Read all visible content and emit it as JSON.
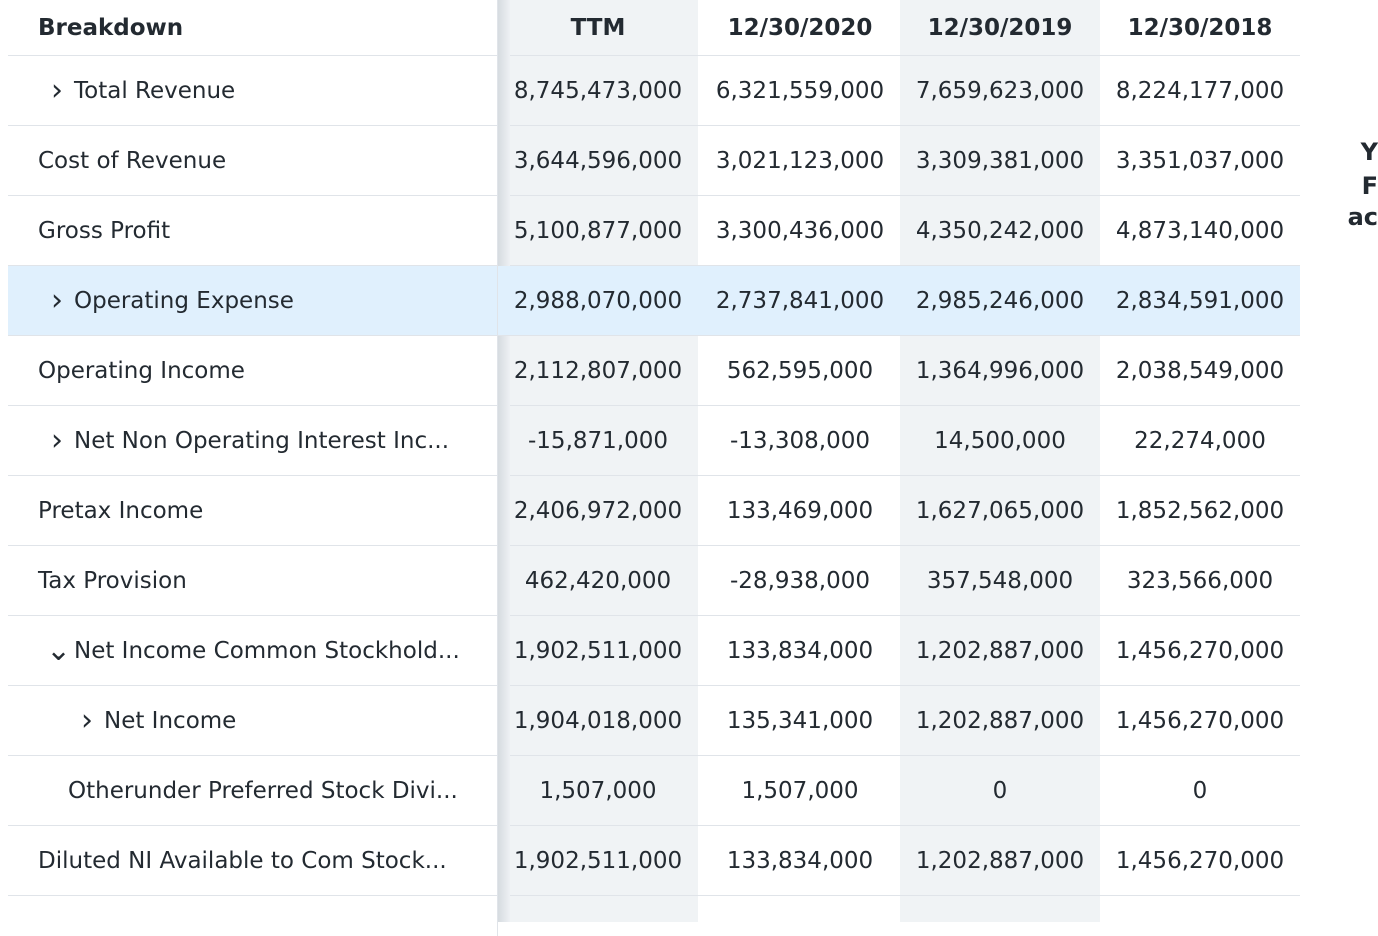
{
  "table": {
    "header": [
      "Breakdown",
      "TTM",
      "12/30/2020",
      "12/30/2019",
      "12/30/2018"
    ],
    "rows": [
      [
        "Total Revenue",
        "8,745,473,000",
        "6,321,559,000",
        "7,659,623,000",
        "8,224,177,000"
      ],
      [
        "Cost of Revenue",
        "3,644,596,000",
        "3,021,123,000",
        "3,309,381,000",
        "3,351,037,000"
      ],
      [
        "Gross Profit",
        "5,100,877,000",
        "3,300,436,000",
        "4,350,242,000",
        "4,873,140,000"
      ],
      [
        "Operating Expense",
        "2,988,070,000",
        "2,737,841,000",
        "2,985,246,000",
        "2,834,591,000"
      ],
      [
        "Operating Income",
        "2,112,807,000",
        "562,595,000",
        "1,364,996,000",
        "2,038,549,000"
      ],
      [
        "Net Non Operating Interest Inc...",
        "-15,871,000",
        "-13,308,000",
        "14,500,000",
        "22,274,000"
      ],
      [
        "Pretax Income",
        "2,406,972,000",
        "133,469,000",
        "1,627,065,000",
        "1,852,562,000"
      ],
      [
        "Tax Provision",
        "462,420,000",
        "-28,938,000",
        "357,548,000",
        "323,566,000"
      ],
      [
        "Net Income Common Stockhold...",
        "1,902,511,000",
        "133,834,000",
        "1,202,887,000",
        "1,456,270,000"
      ],
      [
        "Net Income",
        "1,904,018,000",
        "135,341,000",
        "1,202,887,000",
        "1,456,270,000"
      ],
      [
        "Otherunder Preferred Stock Divi...",
        "1,507,000",
        "1,507,000",
        "0",
        "0"
      ],
      [
        "Diluted NI Available to Com Stock...",
        "1,902,511,000",
        "133,834,000",
        "1,202,887,000",
        "1,456,270,000"
      ]
    ]
  },
  "side_text": [
    "Y",
    "F",
    "ac"
  ]
}
